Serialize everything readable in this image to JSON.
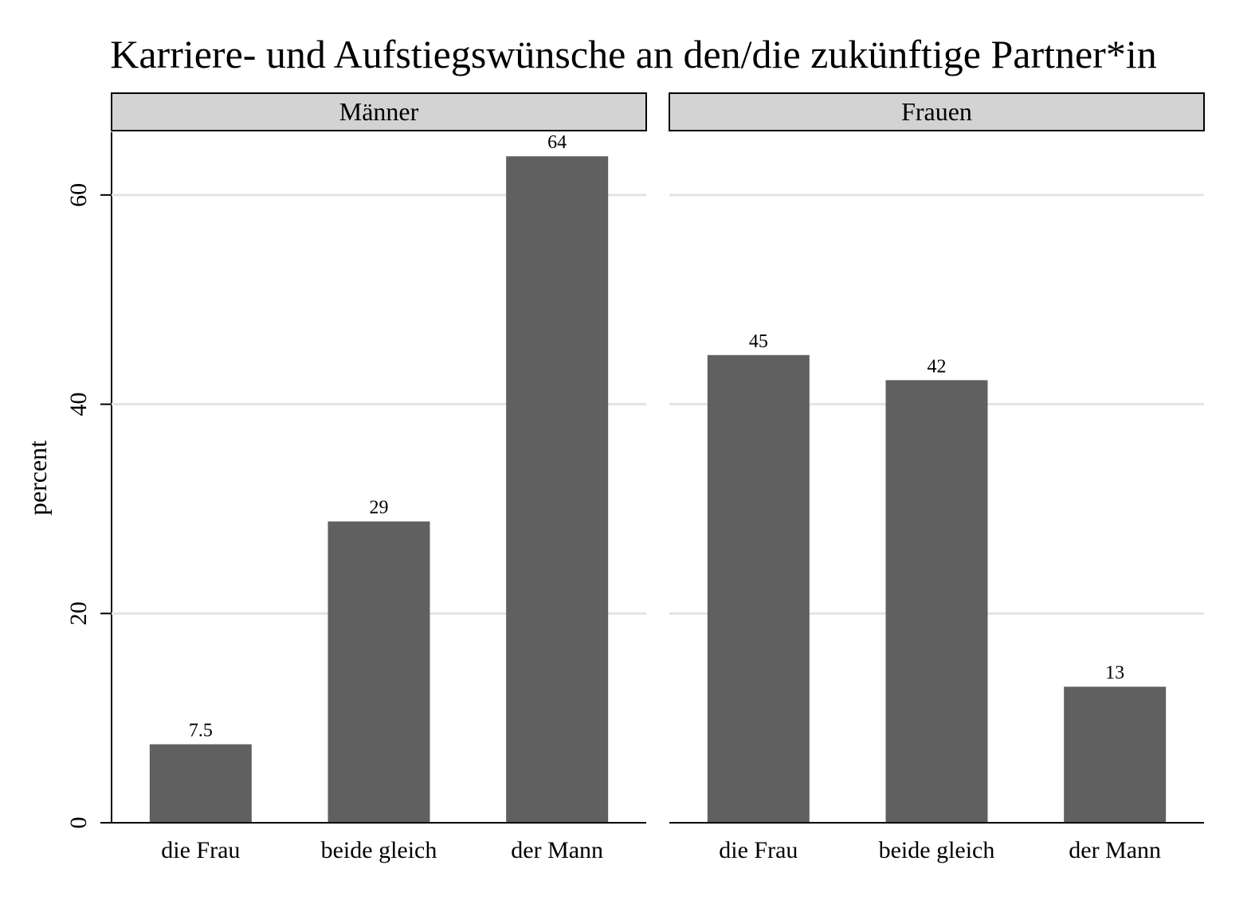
{
  "chart_data": {
    "type": "bar",
    "title": "Karriere- und Aufstiegswünsche an den/die zukünftige Partner*in",
    "ylabel": "percent",
    "xlabel": "",
    "ylim": [
      0,
      66
    ],
    "yticks": [
      0,
      20,
      40,
      60
    ],
    "grid": true,
    "categories": [
      "die Frau",
      "beide gleich",
      "der Mann"
    ],
    "panels": [
      {
        "name": "Männer",
        "values": [
          7.5,
          28.8,
          63.7
        ],
        "labels": [
          "7.5",
          "29",
          "64"
        ]
      },
      {
        "name": "Frauen",
        "values": [
          44.7,
          42.3,
          13.0
        ],
        "labels": [
          "45",
          "42",
          "13"
        ]
      }
    ]
  },
  "colors": {
    "bar": "#606060",
    "strip": "#d3d3d3",
    "grid": "#e4e4e4"
  }
}
